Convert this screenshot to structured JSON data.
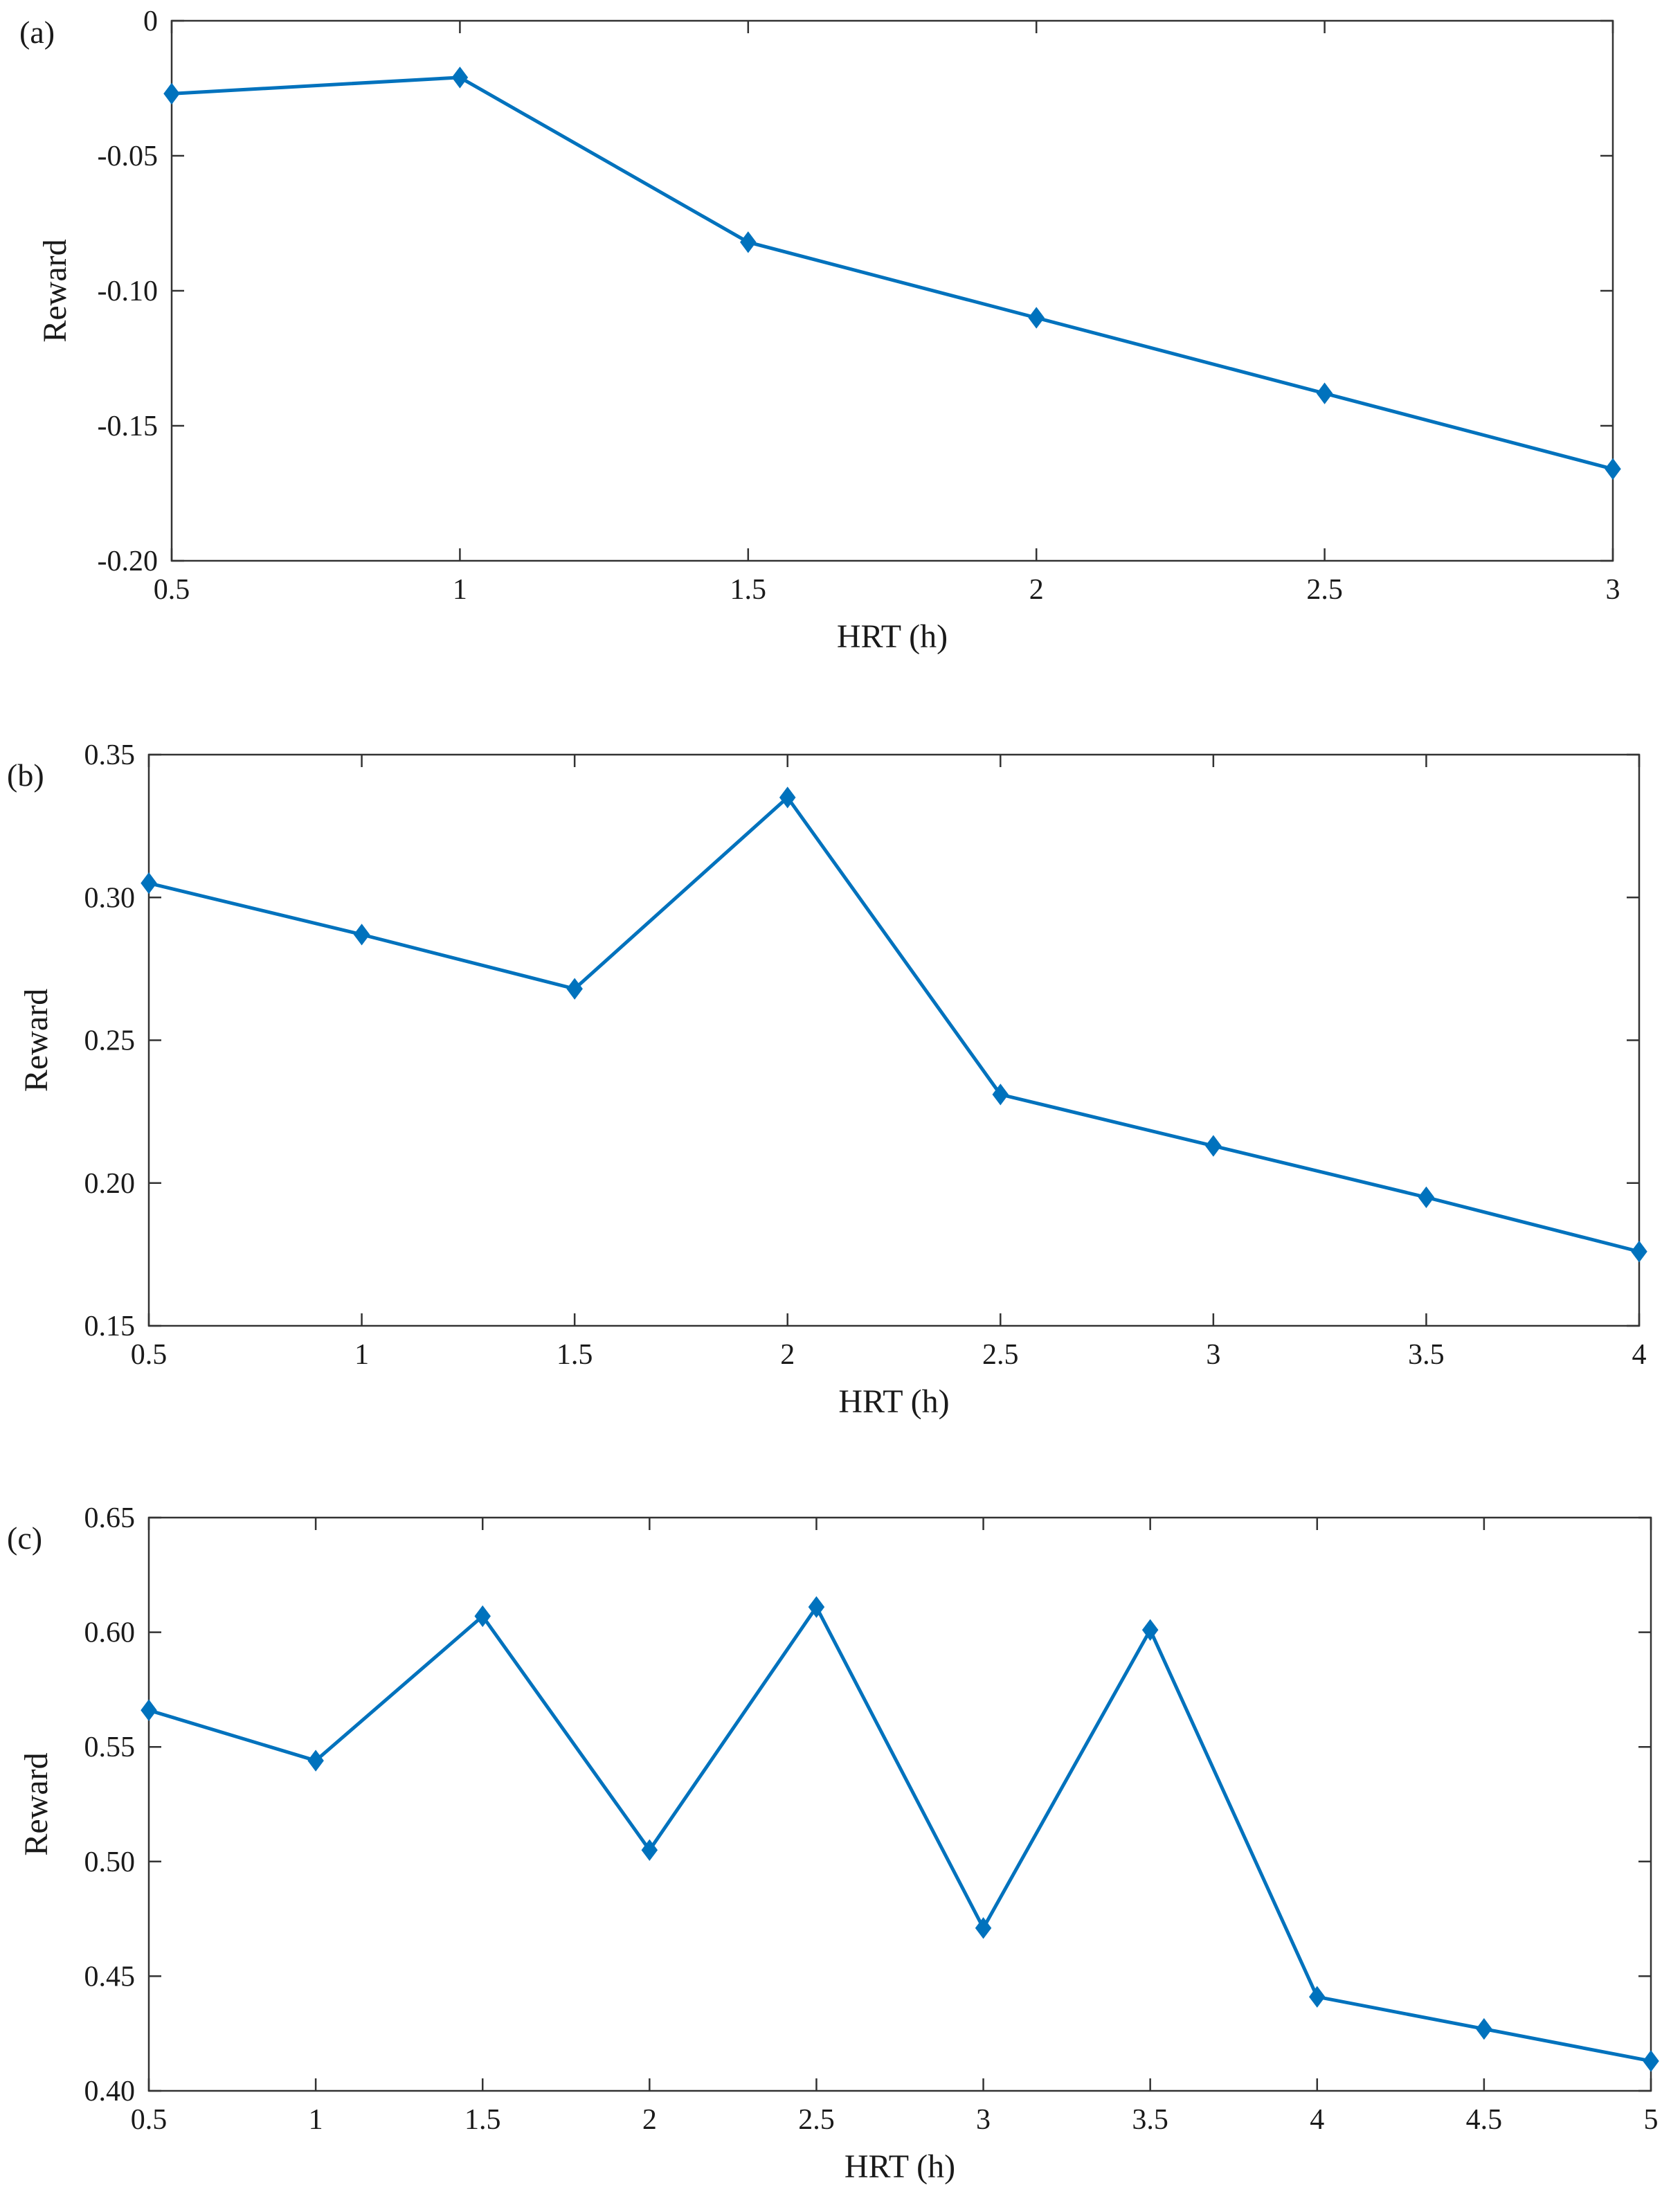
{
  "figure": {
    "series_color": "#0072BD",
    "axis_color": "#333333"
  },
  "chart_data": [
    {
      "type": "line",
      "panel_label": "(a)",
      "title": "",
      "xlabel": "HRT (h)",
      "ylabel": "Reward",
      "x": [
        0.5,
        1,
        1.5,
        2,
        2.5,
        3
      ],
      "values": [
        -0.027,
        -0.021,
        -0.082,
        -0.11,
        -0.138,
        -0.166
      ],
      "xlim": [
        0.5,
        3
      ],
      "ylim": [
        -0.2,
        0
      ],
      "xticks": [
        0.5,
        1,
        1.5,
        2,
        2.5,
        3
      ],
      "xtick_labels": [
        "0.5",
        "1",
        "1.5",
        "2",
        "2.5",
        "3"
      ],
      "yticks": [
        0,
        -0.05,
        -0.1,
        -0.15,
        -0.2
      ],
      "ytick_labels": [
        "0",
        "-0.05",
        "-0.10",
        "-0.15",
        "-0.20"
      ],
      "marker": "diamond",
      "grid": false
    },
    {
      "type": "line",
      "panel_label": "(b)",
      "title": "",
      "xlabel": "HRT (h)",
      "ylabel": "Reward",
      "x": [
        0.5,
        1,
        1.5,
        2,
        2.5,
        3,
        3.5,
        4
      ],
      "values": [
        0.305,
        0.287,
        0.268,
        0.335,
        0.231,
        0.213,
        0.195,
        0.176
      ],
      "xlim": [
        0.5,
        4
      ],
      "ylim": [
        0.15,
        0.35
      ],
      "xticks": [
        0.5,
        1,
        1.5,
        2,
        2.5,
        3,
        3.5,
        4
      ],
      "xtick_labels": [
        "0.5",
        "1",
        "1.5",
        "2",
        "2.5",
        "3",
        "3.5",
        "4"
      ],
      "yticks": [
        0.35,
        0.3,
        0.25,
        0.2,
        0.15
      ],
      "ytick_labels": [
        "0.35",
        "0.30",
        "0.25",
        "0.20",
        "0.15"
      ],
      "marker": "diamond",
      "grid": false
    },
    {
      "type": "line",
      "panel_label": "(c)",
      "title": "",
      "xlabel": "HRT (h)",
      "ylabel": "Reward",
      "x": [
        0.5,
        1,
        1.5,
        2,
        2.5,
        3,
        3.5,
        4,
        4.5,
        5
      ],
      "values": [
        0.566,
        0.544,
        0.607,
        0.505,
        0.611,
        0.471,
        0.601,
        0.441,
        0.427,
        0.413
      ],
      "xlim": [
        0.5,
        5
      ],
      "ylim": [
        0.4,
        0.65
      ],
      "xticks": [
        0.5,
        1,
        1.5,
        2,
        2.5,
        3,
        3.5,
        4,
        4.5,
        5
      ],
      "xtick_labels": [
        "0.5",
        "1",
        "1.5",
        "2",
        "2.5",
        "3",
        "3.5",
        "4",
        "4.5",
        "5"
      ],
      "yticks": [
        0.65,
        0.6,
        0.55,
        0.5,
        0.45,
        0.4
      ],
      "ytick_labels": [
        "0.65",
        "0.60",
        "0.55",
        "0.50",
        "0.45",
        "0.40"
      ],
      "marker": "diamond",
      "grid": false
    }
  ]
}
